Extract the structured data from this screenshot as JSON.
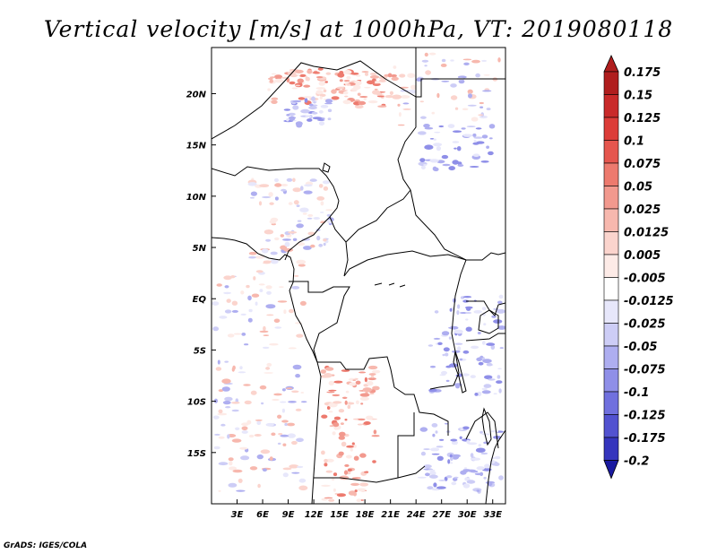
{
  "title": "Vertical velocity [m/s] at 1000hPa, VT: 2019080118",
  "credit": "GrADS: IGES/COLA",
  "map": {
    "lon_range": [
      0,
      34.5
    ],
    "lat_range": [
      -20,
      24.5
    ],
    "lon_ticks": [
      {
        "value": 3,
        "label": "3E"
      },
      {
        "value": 6,
        "label": "6E"
      },
      {
        "value": 9,
        "label": "9E"
      },
      {
        "value": 12,
        "label": "12E"
      },
      {
        "value": 15,
        "label": "15E"
      },
      {
        "value": 18,
        "label": "18E"
      },
      {
        "value": 21,
        "label": "21E"
      },
      {
        "value": 24,
        "label": "24E"
      },
      {
        "value": 27,
        "label": "27E"
      },
      {
        "value": 30,
        "label": "30E"
      },
      {
        "value": 33,
        "label": "33E"
      }
    ],
    "lat_ticks": [
      {
        "value": 20,
        "label": "20N"
      },
      {
        "value": 15,
        "label": "15N"
      },
      {
        "value": 10,
        "label": "10N"
      },
      {
        "value": 5,
        "label": "5N"
      },
      {
        "value": 0,
        "label": "EQ"
      },
      {
        "value": -5,
        "label": "5S"
      },
      {
        "value": -10,
        "label": "10S"
      },
      {
        "value": -15,
        "label": "15S"
      }
    ]
  },
  "colorbar": {
    "levels": [
      {
        "label": "0.175",
        "color": "#b01e1e"
      },
      {
        "label": "0.15",
        "color": "#c92a2a"
      },
      {
        "label": "0.125",
        "color": "#dc3c38"
      },
      {
        "label": "0.1",
        "color": "#e5564e"
      },
      {
        "label": "0.075",
        "color": "#ed7a6e"
      },
      {
        "label": "0.05",
        "color": "#f2998e"
      },
      {
        "label": "0.025",
        "color": "#f7b8ae"
      },
      {
        "label": "0.0125",
        "color": "#fbd4cd"
      },
      {
        "label": "0.005",
        "color": "#fdebe7"
      },
      {
        "label": "-0.005",
        "color": "#ffffff"
      },
      {
        "label": "-0.0125",
        "color": "#e7e7fb"
      },
      {
        "label": "-0.025",
        "color": "#cdcdf6"
      },
      {
        "label": "-0.05",
        "color": "#aeaef0"
      },
      {
        "label": "-0.075",
        "color": "#8f8fe8"
      },
      {
        "label": "-0.1",
        "color": "#7070de"
      },
      {
        "label": "-0.125",
        "color": "#5252d0"
      },
      {
        "label": "-0.175",
        "color": "#3535bd"
      },
      {
        "label": "-0.2",
        "color": "#2020a6"
      }
    ],
    "top_color": "#b01e1e",
    "bottom_color": "#1a1aa0"
  }
}
